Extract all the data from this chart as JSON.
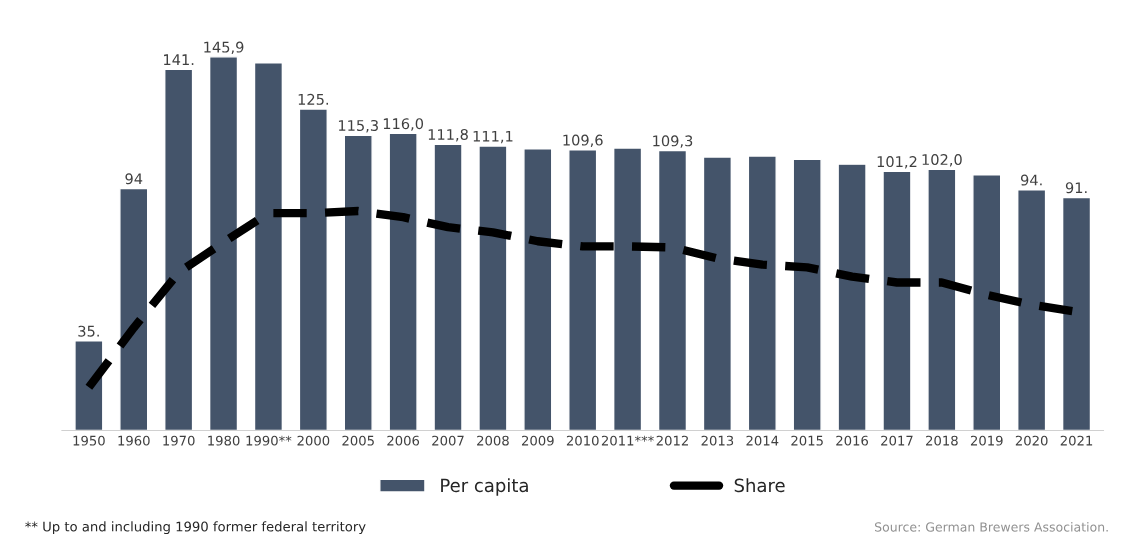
{
  "chart_data": {
    "type": "bar",
    "categories": [
      "1950",
      "1960",
      "1970",
      "1980",
      "1990**",
      "2000",
      "2005",
      "2006",
      "2007",
      "2008",
      "2009",
      "2010",
      "2011***",
      "2012",
      "2013",
      "2014",
      "2015",
      "2016",
      "2017",
      "2018",
      "2019",
      "2020",
      "2021"
    ],
    "series": [
      {
        "name": "Per capita",
        "color": "#44546a",
        "values": [
          35,
          94.5,
          141.0,
          145.9,
          143.6,
          125.5,
          115.3,
          116.0,
          111.8,
          111.1,
          110.0,
          109.6,
          110.3,
          109.3,
          106.8,
          107.2,
          105.9,
          104.0,
          101.2,
          102.0,
          99.8,
          94,
          91
        ],
        "value_labels": [
          "35.",
          "94",
          "141.",
          "145,9",
          null,
          "125.",
          "115,3",
          "116,0",
          "111,8",
          "111,1",
          null,
          "109,6",
          null,
          "109,3",
          null,
          null,
          null,
          null,
          "101,2",
          "102,0",
          null,
          "94.",
          "91."
        ]
      },
      {
        "name": "Share",
        "type": "line",
        "color": "#000000",
        "line_style": "dashed",
        "values": [
          16.9,
          40.1,
          61.7,
          73.5,
          84.9,
          84.9,
          85.7,
          83.3,
          79.4,
          77.4,
          73.9,
          71.9,
          71.9,
          71.5,
          67.2,
          64.8,
          63.7,
          60.1,
          57.8,
          57.8,
          53.0,
          49.1,
          46.4
        ]
      }
    ],
    "relative": false,
    "legend": "bottom",
    "grid": false,
    "annotations": [
      "** Up to and including 1990 former federal territory",
      "Source: German Brewers Association."
    ]
  }
}
